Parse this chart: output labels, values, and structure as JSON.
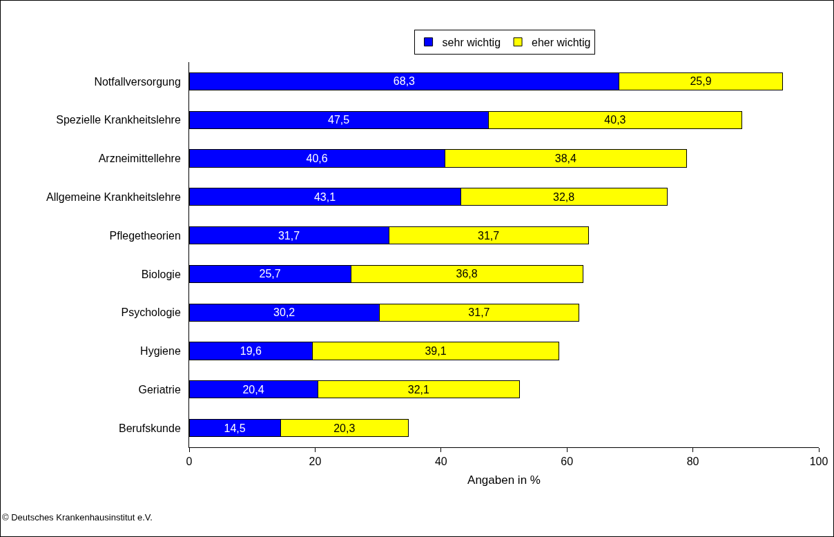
{
  "chart_data": {
    "type": "bar",
    "orientation": "horizontal",
    "stacked": true,
    "categories": [
      "Notfallversorgung",
      "Spezielle Krankheitslehre",
      "Arzneimittellehre",
      "Allgemeine Krankheitslehre",
      "Pflegetheorien",
      "Biologie",
      "Psychologie",
      "Hygiene",
      "Geriatrie",
      "Berufskunde"
    ],
    "series": [
      {
        "name": "sehr wichtig",
        "color": "#0000ff",
        "values": [
          68.3,
          47.5,
          40.6,
          43.1,
          31.7,
          25.7,
          30.2,
          19.6,
          20.4,
          14.5
        ],
        "value_labels": [
          "68,3",
          "47,5",
          "40,6",
          "43,1",
          "31,7",
          "25,7",
          "30,2",
          "19,6",
          "20,4",
          "14,5"
        ]
      },
      {
        "name": "eher wichtig",
        "color": "#ffff00",
        "values": [
          25.9,
          40.3,
          38.4,
          32.8,
          31.7,
          36.8,
          31.7,
          39.1,
          32.1,
          20.3
        ],
        "value_labels": [
          "25,9",
          "40,3",
          "38,4",
          "32,8",
          "31,7",
          "36,8",
          "31,7",
          "39,1",
          "32,1",
          "20,3"
        ]
      }
    ],
    "xlabel": "Angaben in %",
    "xlim": [
      0,
      100
    ],
    "xticks": [
      0,
      20,
      40,
      60,
      80,
      100
    ],
    "grid": false,
    "legend": "top",
    "annotations": [
      "© Deutsches Krankenhausinstitut e.V."
    ]
  }
}
